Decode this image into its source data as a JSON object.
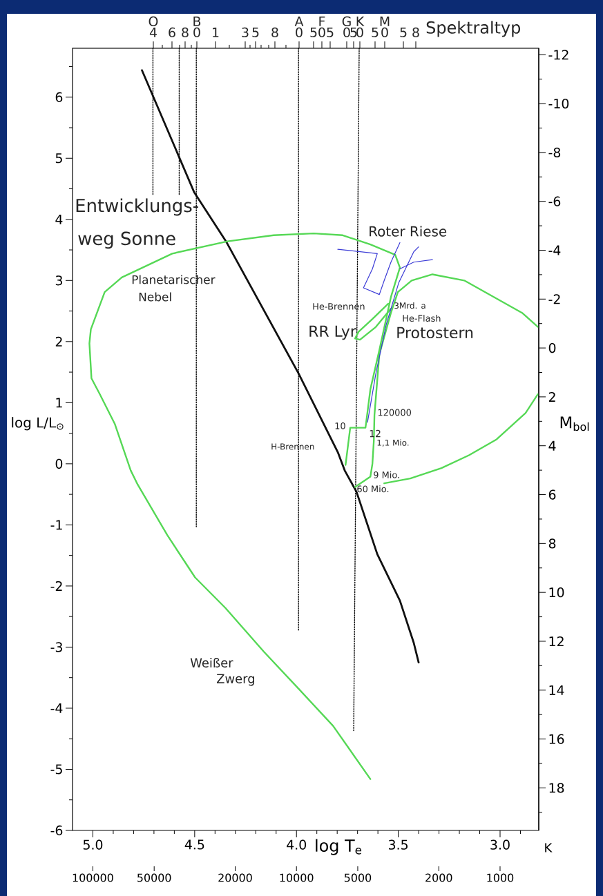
{
  "chart_data": {
    "type": "line",
    "xlabel": "log T$_{e}$",
    "ylabel": "log L/L$_{⊙}$",
    "y2label": "M$_{bol}$",
    "x2label": "K",
    "log": "x2",
    "xlim": [
      5.1,
      2.81
    ],
    "ylim": [
      -6,
      6.8
    ],
    "y2lim": [
      19.74,
      -12.26
    ],
    "x2lim": [
      125893,
      645.65
    ],
    "xticks": [
      {
        "value": 5.0,
        "label": "5.0"
      },
      {
        "value": 4.9,
        "label": null
      },
      {
        "value": 4.8,
        "label": null
      },
      {
        "value": 4.7,
        "label": null
      },
      {
        "value": 4.6,
        "label": null
      },
      {
        "value": 4.5,
        "label": "4.5"
      },
      {
        "value": 4.4,
        "label": null
      },
      {
        "value": 4.3,
        "label": null
      },
      {
        "value": 4.2,
        "label": null
      },
      {
        "value": 4.1,
        "label": null
      },
      {
        "value": 4.0,
        "label": "4.0"
      },
      {
        "value": 3.9,
        "label": null
      },
      {
        "value": 3.8,
        "label": null
      },
      {
        "value": 3.7,
        "label": null
      },
      {
        "value": 3.6,
        "label": null
      },
      {
        "value": 3.5,
        "label": "3.5"
      },
      {
        "value": 3.4,
        "label": null
      },
      {
        "value": 3.3,
        "label": null
      },
      {
        "value": 3.2,
        "label": null
      },
      {
        "value": 3.1,
        "label": null
      },
      {
        "value": 3.0,
        "label": "3.0"
      },
      {
        "value": 2.9,
        "label": null
      }
    ],
    "yticks": [
      -6,
      -5,
      -4,
      -3,
      -2,
      -1,
      0,
      1,
      2,
      3,
      4,
      5,
      6,
      {
        "value": -5.5,
        "label": null
      },
      {
        "value": -4.5,
        "label": null
      },
      {
        "value": -3.5,
        "label": null
      },
      {
        "value": -2.5,
        "label": null
      },
      {
        "value": -1.5,
        "label": null
      },
      {
        "value": -0.5,
        "label": null
      },
      {
        "value": 0.5,
        "label": null
      },
      {
        "value": 1.5,
        "label": null
      },
      {
        "value": 2.5,
        "label": null
      },
      {
        "value": 3.5,
        "label": null
      },
      {
        "value": 4.5,
        "label": null
      },
      {
        "value": 5.5,
        "label": null
      },
      {
        "value": 6.5,
        "label": null
      }
    ],
    "y2ticks": [
      -12,
      -10,
      -8,
      -6,
      -4,
      -2,
      0,
      2,
      4,
      6,
      8,
      10,
      12,
      14,
      16,
      18,
      {
        "value": -11,
        "label": null
      },
      {
        "value": -9,
        "label": null
      },
      {
        "value": -7,
        "label": null
      },
      {
        "value": -5,
        "label": null
      },
      {
        "value": -3,
        "label": null
      },
      {
        "value": -1,
        "label": null
      },
      {
        "value": 1,
        "label": null
      },
      {
        "value": 3,
        "label": null
      },
      {
        "value": 5,
        "label": null
      },
      {
        "value": 7,
        "label": null
      },
      {
        "value": 9,
        "label": null
      },
      {
        "value": 11,
        "label": null
      },
      {
        "value": 13,
        "label": null
      },
      {
        "value": 15,
        "label": null
      },
      {
        "value": 17,
        "label": null
      },
      {
        "value": 19,
        "label": null
      }
    ],
    "x2ticks": [
      100000,
      50000,
      20000,
      10000,
      5000,
      2000,
      1000
    ],
    "series": [
      {
        "color": "#111111",
        "x": [
          4.759,
          4.502,
          4.346,
          3.99,
          3.797,
          3.763,
          3.705,
          3.603,
          3.492,
          3.424,
          3.4
        ],
        "values": [
          6.44,
          4.44,
          3.64,
          1.48,
          0.19,
          -0.11,
          -0.46,
          -1.48,
          -2.24,
          -2.93,
          -3.25
        ]
      },
      {
        "color": "#000000",
        "line_style": "dotted",
        "x": [
          4.705,
          4.705
        ],
        "values": [
          6.8,
          4.4
        ]
      },
      {
        "color": "#000000",
        "line_style": "dotted",
        "x": [
          4.576,
          4.576
        ],
        "values": [
          6.8,
          4.4
        ]
      },
      {
        "color": "#000000",
        "line_style": "dotted",
        "x": [
          4.492,
          4.492
        ],
        "values": [
          6.8,
          -1.03
        ]
      },
      {
        "color": "#000000",
        "line_style": "dotted",
        "x": [
          3.99,
          3.99
        ],
        "values": [
          6.8,
          -2.73
        ]
      },
      {
        "color": "#000000",
        "line_style": "dotted",
        "x": [
          3.692,
          3.719
        ],
        "values": [
          6.8,
          -4.38
        ]
      },
      {
        "color": "#55d855",
        "x": [
          2.814,
          2.875,
          3.017,
          3.153,
          3.288,
          3.441,
          3.569
        ],
        "values": [
          1.14,
          0.83,
          0.4,
          0.14,
          -0.07,
          -0.24,
          -0.32
        ]
      },
      {
        "color": "#55d855",
        "x": [
          2.814,
          2.892,
          3.176,
          3.332,
          3.434,
          3.502,
          3.536,
          3.593,
          3.617,
          3.62,
          3.627,
          3.637,
          3.712
        ],
        "values": [
          2.24,
          2.47,
          3.0,
          3.1,
          3.0,
          2.81,
          2.47,
          1.79,
          0.8,
          0.38,
          0.0,
          -0.21,
          -0.38
        ]
      },
      {
        "color": "#55d855",
        "x": [
          3.759,
          3.736,
          3.661,
          3.637,
          3.593,
          3.536,
          3.492,
          3.515,
          3.637,
          3.773,
          3.915,
          4.112,
          4.339,
          4.61,
          4.858,
          4.942,
          5.01,
          5.017,
          5.007,
          4.966,
          4.892,
          4.814,
          4.78,
          4.634,
          4.498,
          4.349,
          4.159,
          3.99,
          3.82,
          3.637
        ],
        "values": [
          -0.02,
          0.59,
          0.59,
          1.22,
          1.86,
          2.73,
          3.21,
          3.42,
          3.59,
          3.74,
          3.77,
          3.74,
          3.64,
          3.44,
          3.05,
          2.81,
          2.2,
          1.97,
          1.4,
          1.14,
          0.65,
          -0.11,
          -0.34,
          -1.17,
          -1.86,
          -2.36,
          -3.08,
          -3.68,
          -4.29,
          -5.16
        ]
      },
      {
        "color": "#55d855",
        "x": [
          3.549,
          3.627,
          3.695,
          3.712,
          3.688,
          3.61,
          3.536
        ],
        "values": [
          2.62,
          2.37,
          2.16,
          2.05,
          2.03,
          2.24,
          2.54
        ]
      },
      {
        "color": "#3b3bd6",
        "x": [
          3.651,
          3.61,
          3.559,
          3.498,
          3.424,
          3.4
        ],
        "values": [
          0.68,
          1.48,
          2.28,
          2.96,
          3.47,
          3.55
        ]
      },
      {
        "color": "#3b3bd6",
        "x": [
          3.797,
          3.603,
          3.627,
          3.671,
          3.593,
          3.569,
          3.536,
          3.492
        ],
        "values": [
          3.51,
          3.44,
          3.19,
          2.88,
          2.77,
          3.0,
          3.3,
          3.62
        ]
      },
      {
        "color": "#3b3bd6",
        "x": [
          3.492,
          3.424,
          3.332
        ],
        "values": [
          3.19,
          3.3,
          3.34
        ]
      }
    ],
    "annotations": [
      "Entwicklungs-",
      "weg Sonne",
      "Roter Riese",
      "Planetarischer",
      "Nebel",
      "He-Brennen",
      {
        "text": "3Mrd. a",
        "x": 3.522,
        "y": 2.59
      },
      "He-Flash",
      "RR Lyr",
      "Protostern",
      {
        "text": "120000",
        "x": 3.603,
        "y": 0.84
      },
      "10",
      "12",
      {
        "text": "1,1 Mio.",
        "x": 3.607,
        "y": 0.34
      },
      "H-Brennen",
      {
        "text": "9 Mio.",
        "x": 3.624,
        "y": -0.18
      },
      {
        "text": "60 Mio.",
        "x": 3.705,
        "y": -0.41
      },
      "Weißer",
      "Zwerg",
      "Spektraltyp",
      "O",
      "B",
      "A",
      "F",
      "G",
      "K",
      "M",
      "4",
      "6",
      "8",
      "0",
      "1",
      "3",
      "5",
      "8",
      "0",
      "5",
      "0",
      "5",
      "0",
      "5",
      "0",
      "5",
      "0",
      "5",
      "8"
    ]
  }
}
